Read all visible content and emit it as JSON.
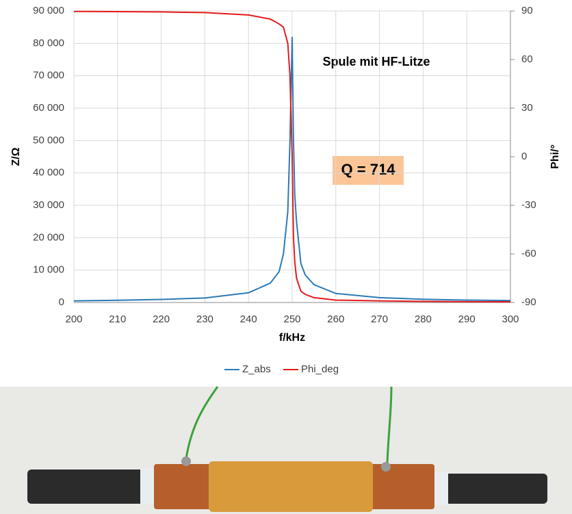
{
  "chart_data": {
    "type": "line",
    "annotations": [
      "Spule mit HF-Litze",
      "Q = 714"
    ],
    "xlabel": "f/kHz",
    "ylabel": "Z/Ω",
    "y2label": "Phi/°",
    "x": [
      200,
      210,
      220,
      230,
      240,
      245,
      247,
      248,
      249,
      249.5,
      250,
      250.3,
      250.6,
      251,
      252,
      253,
      255,
      260,
      270,
      280,
      290,
      300
    ],
    "series": [
      {
        "name": "Z_abs",
        "color": "#2a7ab8",
        "axis": "y",
        "values": [
          500,
          700,
          950,
          1400,
          3000,
          6000,
          9500,
          15000,
          28000,
          50000,
          82000,
          50000,
          33000,
          25000,
          12000,
          8500,
          5500,
          2800,
          1500,
          1000,
          750,
          600
        ]
      },
      {
        "name": "Phi_deg",
        "color": "#e31a1c",
        "axis": "y2",
        "values": [
          89.7,
          89.6,
          89.4,
          89,
          87.5,
          85,
          82,
          80,
          70,
          50,
          0,
          -50,
          -65,
          -75,
          -83,
          -85,
          -87,
          -88.5,
          -89,
          -89.3,
          -89.5,
          -89.6
        ]
      }
    ],
    "xlim": [
      200,
      300
    ],
    "xticks": [
      200,
      210,
      220,
      230,
      240,
      250,
      260,
      270,
      280,
      290,
      300
    ],
    "ylim": [
      0,
      90000
    ],
    "yticks": [
      0,
      {
        "value": 10000,
        "label": "10 000"
      },
      {
        "value": 20000,
        "label": "20 000"
      },
      {
        "value": 30000,
        "label": "30 000"
      },
      {
        "value": 40000,
        "label": "40 000"
      },
      {
        "value": 50000,
        "label": "50 000"
      },
      {
        "value": 60000,
        "label": "60 000"
      },
      {
        "value": 70000,
        "label": "70 000"
      },
      {
        "value": 80000,
        "label": "80 000"
      },
      {
        "value": 90000,
        "label": "90 000"
      }
    ],
    "y2lim": [
      -90,
      90
    ],
    "y2ticks": [
      -90,
      -60,
      -30,
      0,
      30,
      60,
      90
    ],
    "grid": true,
    "legend": "bottom"
  }
}
